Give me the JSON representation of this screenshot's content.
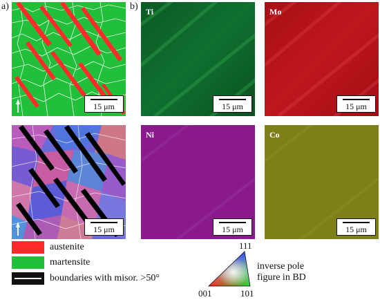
{
  "panels": {
    "a": {
      "letter": "a)",
      "phase_map": {
        "scale_label": "15 μm"
      },
      "ipf_map": {
        "scale_label": "15 μm"
      }
    },
    "b": {
      "letter": "b)",
      "maps": [
        {
          "element": "Ti",
          "scale_label": "15 μm",
          "color": "#0e6a2a"
        },
        {
          "element": "Mo",
          "scale_label": "15 μm",
          "color": "#b8121a"
        },
        {
          "element": "Ni",
          "scale_label": "15 μm",
          "color": "#8a1a8c"
        },
        {
          "element": "Co",
          "scale_label": "15 μm",
          "color": "#7f7f1a"
        }
      ]
    }
  },
  "legend": [
    {
      "label": "austenite",
      "color": "#ff2a2a"
    },
    {
      "label": "martensite",
      "color": "#22c03a"
    },
    {
      "label": "boundaries with misor. >50°",
      "color": "#111111"
    }
  ],
  "ipf_key": {
    "corner_top": "111",
    "corner_left": "001",
    "corner_right": "101",
    "caption_line1": "inverse pole",
    "caption_line2": "figure in BD"
  }
}
